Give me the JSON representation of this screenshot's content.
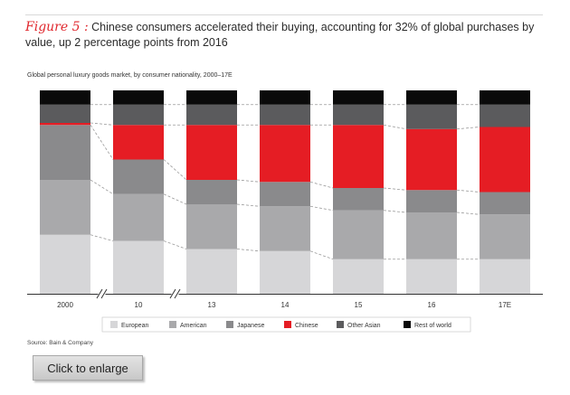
{
  "header": {
    "figure_label": "Figure 5 :",
    "title": "Chinese consumers accelerated their buying, accounting for 32% of global purchases by value, up 2 percentage points from 2016"
  },
  "subtitle": "Global personal luxury goods market, by consumer nationality, 2000–17E",
  "source": "Source: Bain & Company",
  "button": {
    "label": "Click to enlarge"
  },
  "colors": {
    "European": "#d6d6d8",
    "American": "#a9a9ab",
    "Japanese": "#8a8a8c",
    "Chinese": "#e51d24",
    "Other Asian": "#5b5b5d",
    "Rest of world": "#0a0a0a"
  },
  "chart_data": {
    "type": "bar",
    "stacked": true,
    "normalized_to": 100,
    "categories": [
      "2000",
      "10",
      "13",
      "14",
      "15",
      "16",
      "17E"
    ],
    "axis_breaks_after": [
      "2000",
      "10"
    ],
    "series": [
      {
        "name": "European",
        "values": [
          29,
          26,
          22,
          21,
          17,
          17,
          17
        ]
      },
      {
        "name": "American",
        "values": [
          27,
          23,
          22,
          22,
          24,
          23,
          22
        ]
      },
      {
        "name": "Japanese",
        "values": [
          27,
          17,
          12,
          12,
          11,
          11,
          11
        ]
      },
      {
        "name": "Chinese",
        "values": [
          1,
          17,
          27,
          28,
          31,
          30,
          32
        ]
      },
      {
        "name": "Other Asian",
        "values": [
          9,
          10,
          10,
          10,
          10,
          12,
          11
        ]
      },
      {
        "name": "Rest of world",
        "values": [
          7,
          7,
          7,
          7,
          7,
          7,
          7
        ]
      }
    ],
    "legend": [
      "European",
      "American",
      "Japanese",
      "Chinese",
      "Other Asian",
      "Rest of world"
    ],
    "legend_position": "bottom",
    "ylim": [
      0,
      100
    ],
    "grid": false
  }
}
